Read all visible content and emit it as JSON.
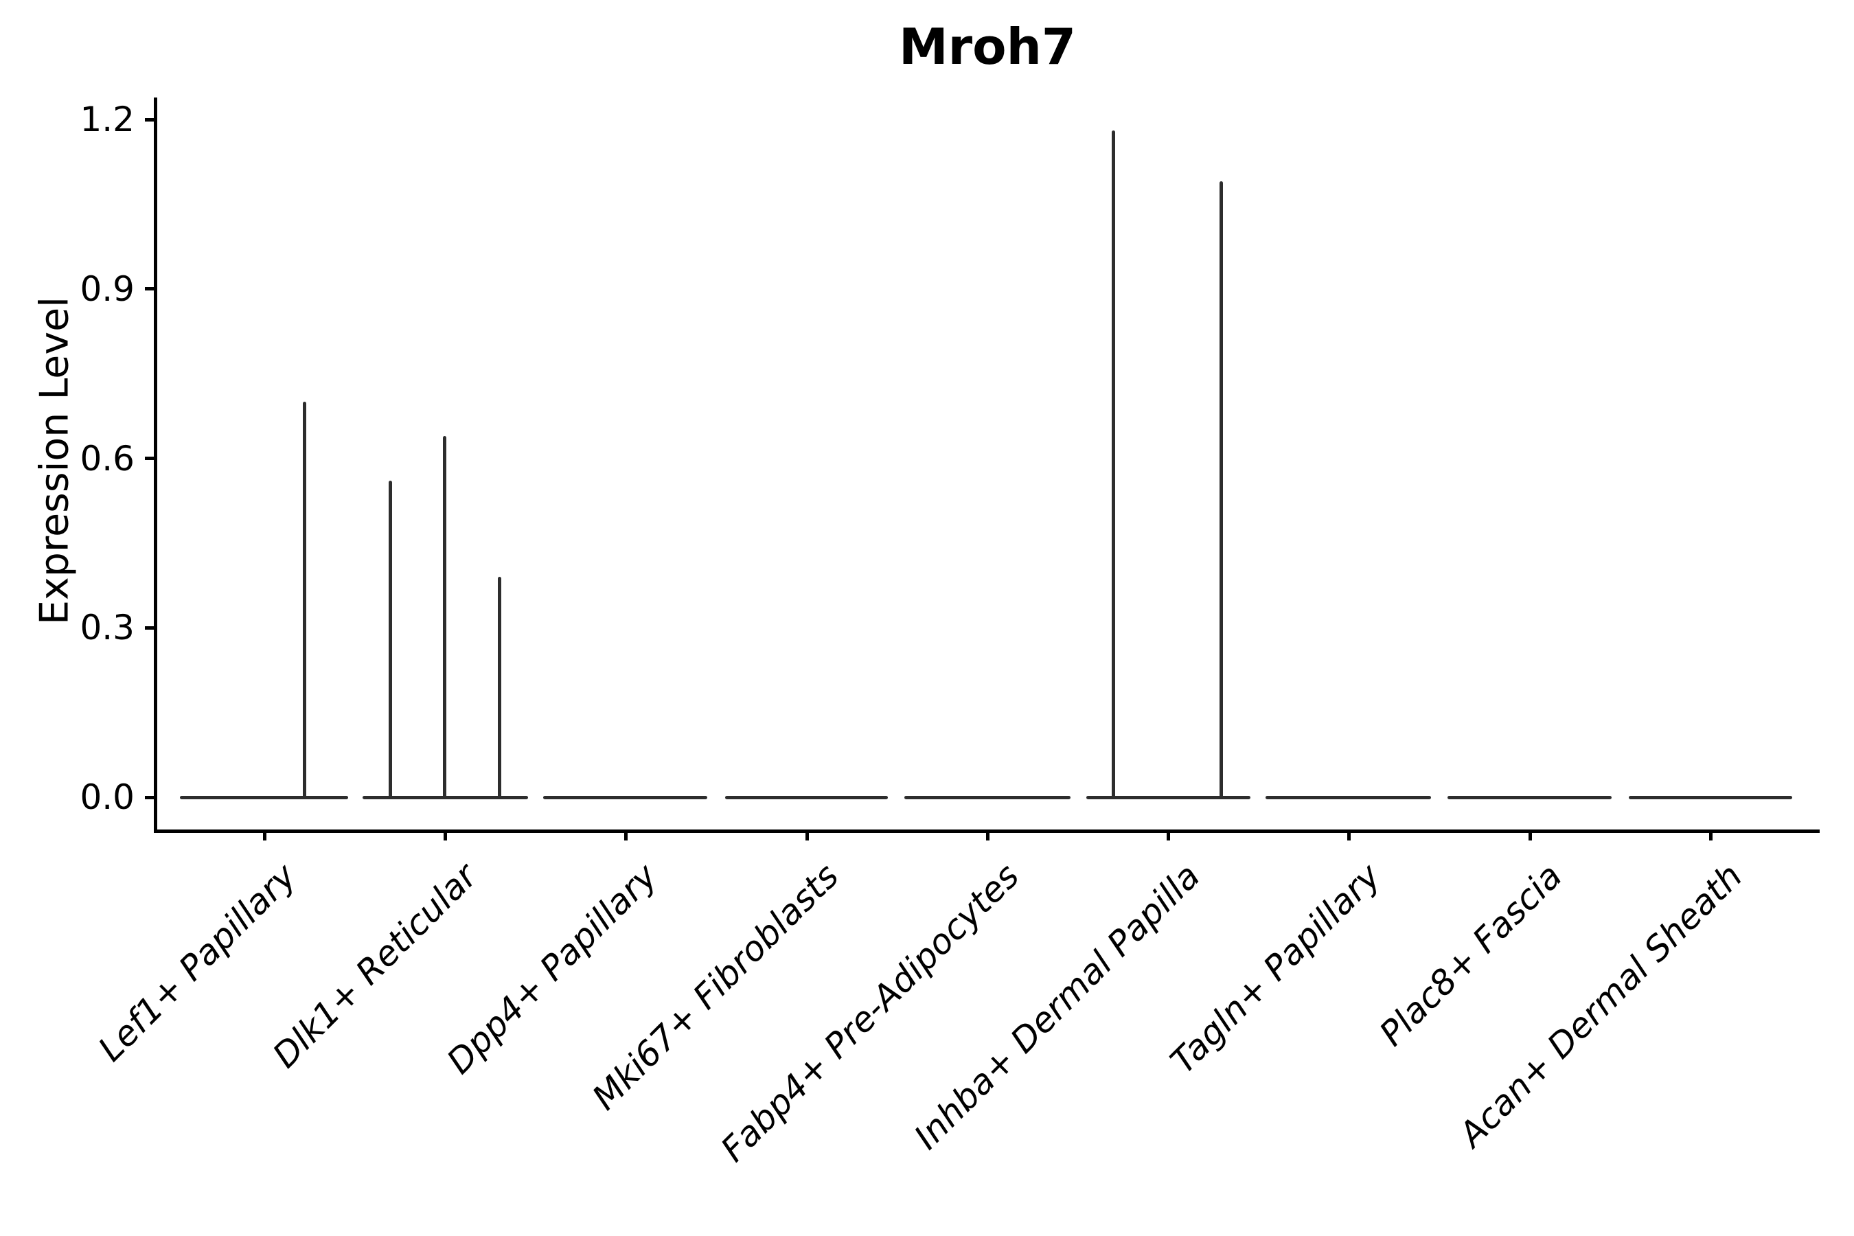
{
  "figure": {
    "title": "Mroh7",
    "background_color": "#ffffff",
    "ink_color": "#000000",
    "violin_color": "#2d2d2d"
  },
  "chart_data": {
    "type": "violin",
    "title": "Mroh7",
    "xlabel": "",
    "ylabel": "Expression Level",
    "grid": false,
    "legend": "none",
    "ylim": [
      -0.07,
      1.24
    ],
    "yticks": [
      0.0,
      0.3,
      0.6,
      0.9,
      1.2
    ],
    "ytick_labels": [
      "0.0",
      "0.3",
      "0.6",
      "0.9",
      "1.2"
    ],
    "categories": [
      "Lef1+ Papillary",
      "Dlk1+ Reticular",
      "Dpp4+ Papillary",
      "Mki67+ Fibroblasts",
      "Fabp4+ Pre-Adipocytes",
      "Inhba+ Dermal Papilla",
      "Tagln+ Papillary",
      "Plac8+ Fascia",
      "Acan+ Dermal Sheath"
    ],
    "description": "Violin plot of Mroh7 expression per fibroblast cluster; each violin is a flat bar at expression 0 with thin vertical tails marking cells with non-zero expression.",
    "max_expression_by_category": [
      0.7,
      0.64,
      0.0,
      0.0,
      0.0,
      1.18,
      0.0,
      0.0,
      0.0
    ],
    "violins": [
      {
        "label": "Lef1+ Papillary",
        "tick_x": 385,
        "base_span": [
          262,
          507
        ],
        "baseline_value": 0.0,
        "spikes": [
          {
            "x": 443,
            "value": 0.7
          }
        ]
      },
      {
        "label": "Dlk1+ Reticular",
        "tick_x": 648,
        "base_span": [
          528,
          769
        ],
        "baseline_value": 0.0,
        "spikes": [
          {
            "x": 568,
            "value": 0.56
          },
          {
            "x": 647,
            "value": 0.64
          },
          {
            "x": 727,
            "value": 0.39
          }
        ]
      },
      {
        "label": "Dpp4+ Papillary",
        "tick_x": 911,
        "base_span": [
          791,
          1030
        ],
        "baseline_value": 0.0,
        "spikes": []
      },
      {
        "label": "Mki67+ Fibroblasts",
        "tick_x": 1175,
        "base_span": [
          1056,
          1293
        ],
        "baseline_value": 0.0,
        "spikes": []
      },
      {
        "label": "Fabp4+ Pre-Adipocytes",
        "tick_x": 1438,
        "base_span": [
          1317,
          1559
        ],
        "baseline_value": 0.0,
        "spikes": []
      },
      {
        "label": "Inhba+ Dermal Papilla",
        "tick_x": 1701,
        "base_span": [
          1582,
          1821
        ],
        "baseline_value": 0.0,
        "spikes": [
          {
            "x": 1621,
            "value": 1.18
          },
          {
            "x": 1778,
            "value": 1.09
          }
        ]
      },
      {
        "label": "Tagln+ Papillary",
        "tick_x": 1964,
        "base_span": [
          1843,
          2084
        ],
        "baseline_value": 0.0,
        "spikes": []
      },
      {
        "label": "Plac8+ Fascia",
        "tick_x": 2228,
        "base_span": [
          2108,
          2347
        ],
        "baseline_value": 0.0,
        "spikes": []
      },
      {
        "label": "Acan+ Dermal Sheath",
        "tick_x": 2491,
        "base_span": [
          2372,
          2610
        ],
        "baseline_value": 0.0,
        "spikes": []
      }
    ]
  }
}
